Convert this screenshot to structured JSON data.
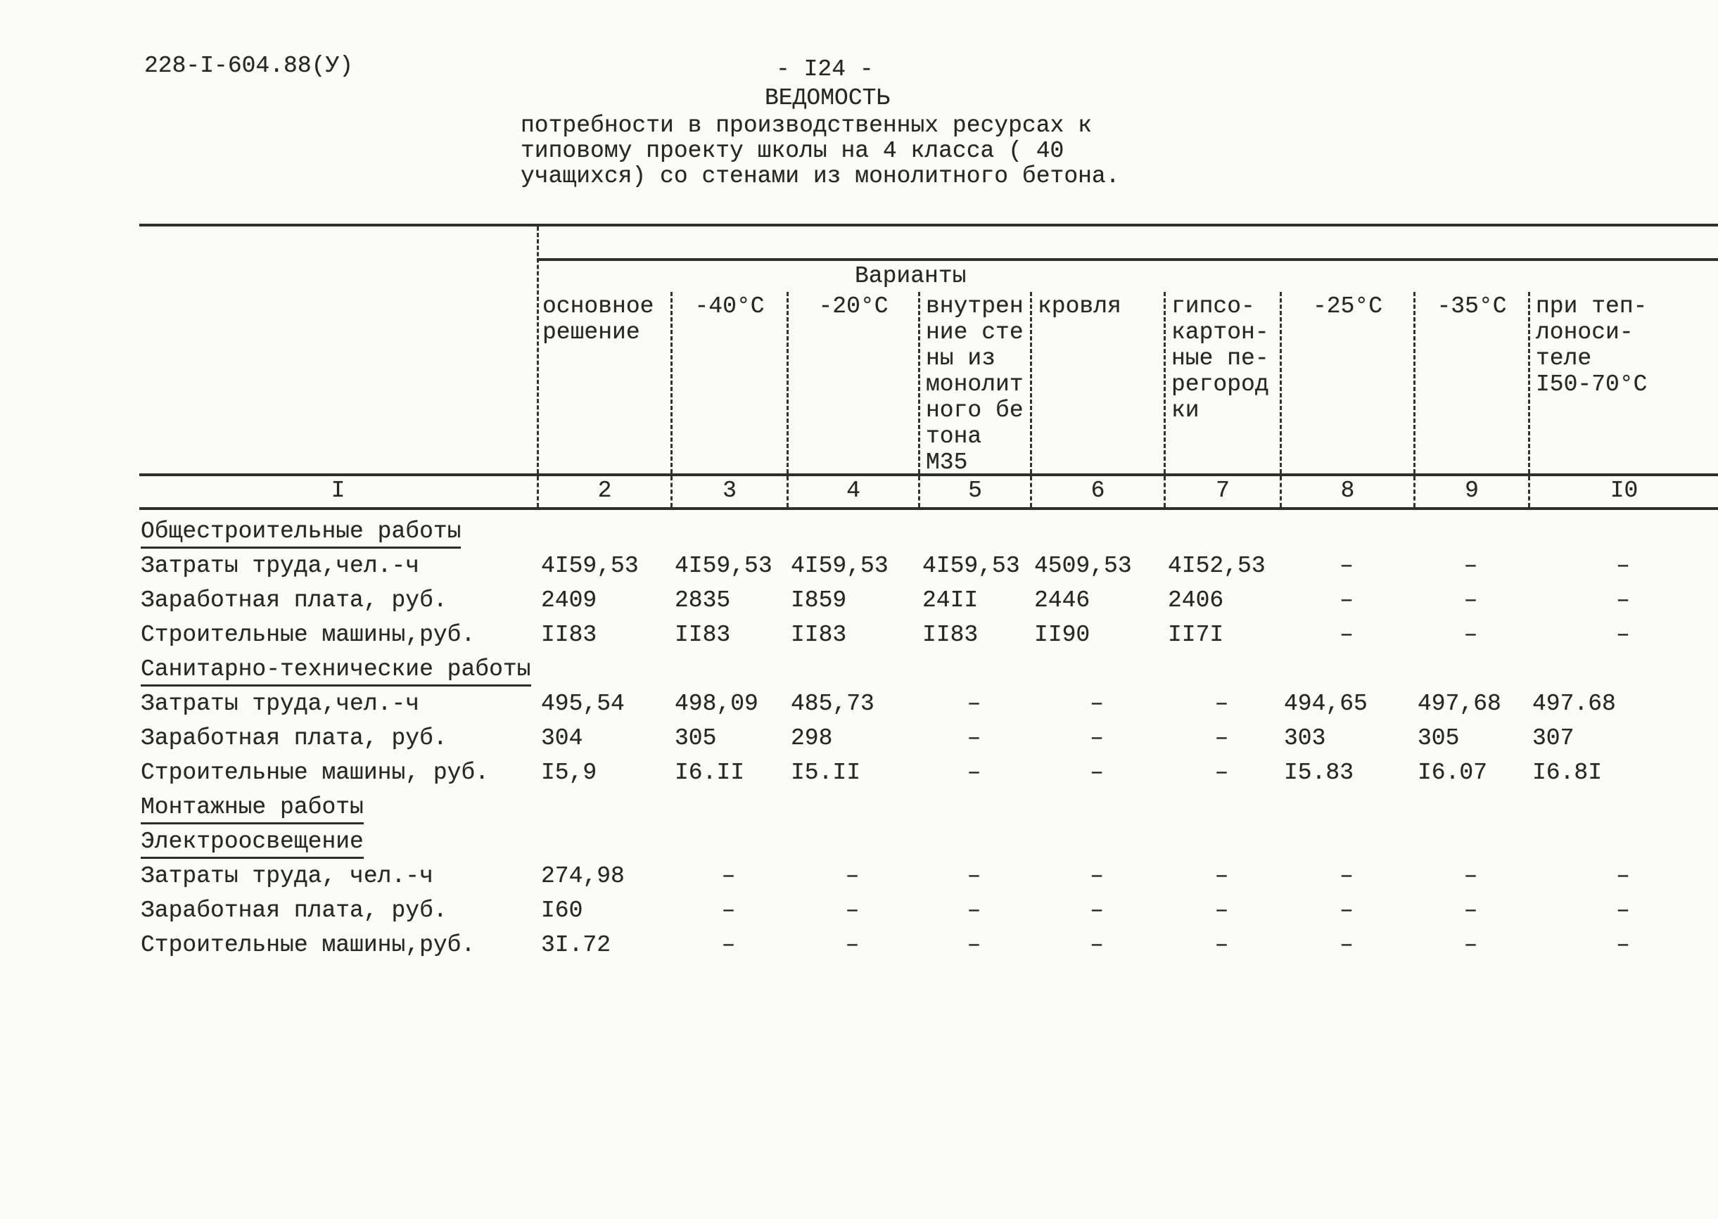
{
  "page": {
    "doc_number": "228-I-604.88(У)",
    "page_number": "- I24 -",
    "title": "ВЕДОМОСТЬ",
    "subtitle": "потребности в производственных ресурсах к\nтиповому проекту школы на 4 класса ( 40\nучащихся) со стенами из монолитного бетона."
  },
  "table": {
    "variants_label": "Варианты",
    "col_headers": [
      "основное\nрешение",
      "-40°С",
      "-20°С",
      "внутрен\nние сте\nны из\nмонолит\nного бе\nтона\nМ35",
      "кровля",
      "гипсо-\nкартон-\nные пе-\nрегород\nки",
      "-25°С",
      "-35°С",
      "при теп-\nлоноси-\nтеле\nI50-70°С"
    ],
    "col_numbers": [
      "I",
      "2",
      "3",
      "4",
      "5",
      "6",
      "7",
      "8",
      "9",
      "I0"
    ],
    "sections": [
      {
        "title": "Общестроительные работы",
        "rows": [
          {
            "label": "Затраты труда,чел.-ч",
            "values": [
              "4I59,53",
              "4I59,53",
              "4I59,53",
              "4I59,53",
              "4509,53",
              "4I52,53",
              "–",
              "–",
              "–"
            ]
          },
          {
            "label": "Заработная плата, руб.",
            "values": [
              "2409",
              "2835",
              "I859",
              "24II",
              "2446",
              "2406",
              "–",
              "–",
              "–"
            ]
          },
          {
            "label": "Строительные машины,руб.",
            "values": [
              "II83",
              "II83",
              "II83",
              "II83",
              "II90",
              "II7I",
              "–",
              "–",
              "–"
            ]
          }
        ]
      },
      {
        "title": "Санитарно-технические работы",
        "rows": [
          {
            "label": "Затраты труда,чел.-ч",
            "values": [
              "495,54",
              "498,09",
              "485,73",
              "–",
              "–",
              "–",
              "494,65",
              "497,68",
              "497.68"
            ]
          },
          {
            "label": "Заработная плата, руб.",
            "values": [
              "304",
              "305",
              "298",
              "–",
              "–",
              "–",
              "303",
              "305",
              "307"
            ]
          },
          {
            "label": "Строительные машины, руб.",
            "values": [
              "I5,9",
              "I6.II",
              "I5.II",
              "–",
              "–",
              "–",
              "I5.83",
              "I6.07",
              "I6.8I"
            ]
          }
        ]
      },
      {
        "title": "Монтажные работы",
        "rows": []
      },
      {
        "title": "Электроосвещение",
        "rows": [
          {
            "label": "Затраты труда, чел.-ч",
            "values": [
              "274,98",
              "–",
              "–",
              "–",
              "–",
              "–",
              "–",
              "–",
              "–"
            ]
          },
          {
            "label": "Заработная плата, руб.",
            "values": [
              "I60",
              "–",
              "–",
              "–",
              "–",
              "–",
              "–",
              "–",
              "–"
            ]
          },
          {
            "label": "Строительные машины,руб.",
            "values": [
              "3I.72",
              "–",
              "–",
              "–",
              "–",
              "–",
              "–",
              "–",
              "–"
            ]
          }
        ]
      }
    ]
  }
}
